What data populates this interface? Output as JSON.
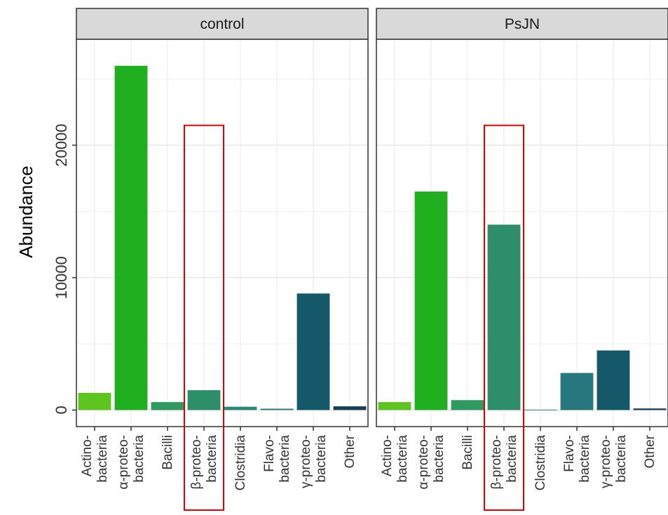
{
  "chart_data": {
    "type": "bar",
    "ylabel": "Abundance",
    "xlabel": "",
    "ylim": [
      -1250,
      28000
    ],
    "yticks": [
      0,
      10000,
      20000
    ],
    "grid": true,
    "legend": "none",
    "categories": [
      [
        "Actino-",
        "bacteria"
      ],
      [
        "α-proteo-",
        "bacteria"
      ],
      [
        "Bacilli"
      ],
      [
        "β-proteo-",
        "bacteria"
      ],
      [
        "Clostridia"
      ],
      [
        "Flavo-",
        "bacteria"
      ],
      [
        "γ-proteo-",
        "bacteria"
      ],
      [
        "Other"
      ]
    ],
    "colors": [
      "#5ec41f",
      "#1faf1f",
      "#2f9a5f",
      "#2d8f6a",
      "#2a8a78",
      "#26787e",
      "#15586a",
      "#163f5a"
    ],
    "highlight_category": "β-proteo-bacteria",
    "highlight_color": "#e00000",
    "panels": [
      {
        "name": "control",
        "values": [
          1300,
          26000,
          600,
          1500,
          250,
          100,
          8800,
          280
        ]
      },
      {
        "name": "PsJN",
        "values": [
          600,
          16500,
          750,
          14000,
          30,
          2800,
          4500,
          120
        ]
      }
    ]
  }
}
